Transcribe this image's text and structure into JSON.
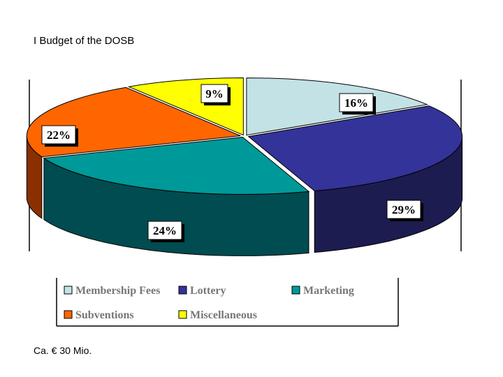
{
  "page": {
    "title": "I Budget of the DOSB",
    "footnote": "Ca. € 30 Mio."
  },
  "chart_data": {
    "type": "pie",
    "style": "3d-exploded-oval",
    "title": "",
    "slices": [
      {
        "name": "Membership Fees",
        "value": 16,
        "label": "16%",
        "color": "#c2e2e6",
        "side_color": "#9cbec4"
      },
      {
        "name": "Lottery",
        "value": 29,
        "label": "29%",
        "color": "#333399",
        "side_color": "#1c1c50"
      },
      {
        "name": "Marketing",
        "value": 24,
        "label": "24%",
        "color": "#009999",
        "side_color": "#004c50"
      },
      {
        "name": "Subventions",
        "value": 22,
        "label": "22%",
        "color": "#ff6600",
        "side_color": "#8a3000"
      },
      {
        "name": "Miscellaneous",
        "value": 9,
        "label": "9%",
        "color": "#ffff00",
        "side_color": "#8a8a00"
      }
    ],
    "legend": {
      "placement": "bottom",
      "rows": [
        [
          "Membership Fees",
          "Lottery",
          "Marketing"
        ],
        [
          "Subventions",
          "Miscellaneous"
        ]
      ]
    }
  }
}
